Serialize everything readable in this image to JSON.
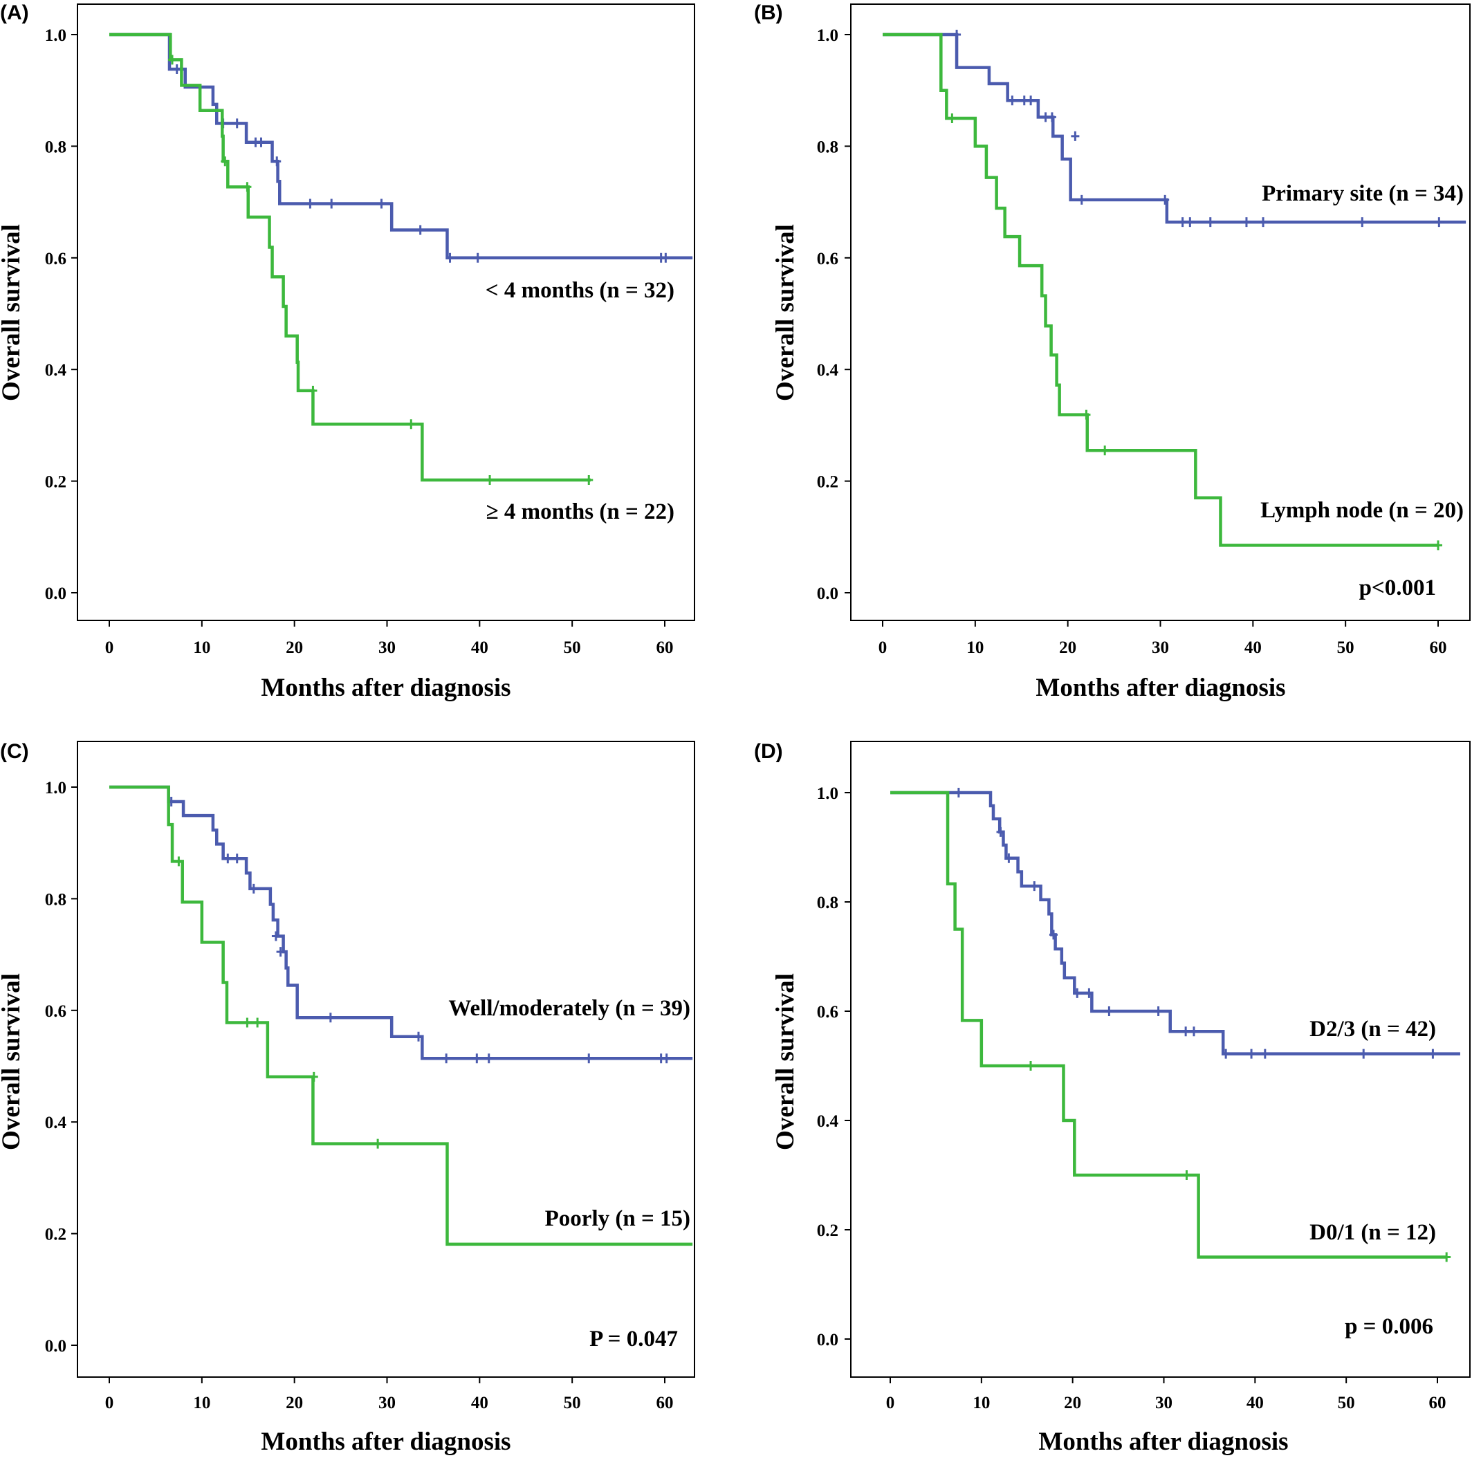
{
  "colors": {
    "blue": "#4B5BAE",
    "green": "#3DB83D"
  },
  "chart_data": [
    {
      "type": "line",
      "panel_label": "(A)",
      "xlabel": "Months after diagnosis",
      "ylabel": "Overall survival",
      "xlim": [
        0,
        63
      ],
      "ylim": [
        0,
        1
      ],
      "xticks": [
        "0",
        "10",
        "20",
        "30",
        "40",
        "50",
        "60"
      ],
      "yticks": [
        "0.0",
        "0.2",
        "0.4",
        "0.6",
        "0.8",
        "1.0"
      ],
      "grid": false,
      "p_value": "",
      "series": [
        {
          "name": "< 4 months (n = 32)",
          "color": "#4B5BAE",
          "steps": [
            [
              0,
              1.0
            ],
            [
              6.5,
              0.938
            ],
            [
              8.2,
              0.906
            ],
            [
              11.2,
              0.875
            ],
            [
              11.6,
              0.841
            ],
            [
              14.8,
              0.807
            ],
            [
              17.6,
              0.773
            ],
            [
              18.2,
              0.737
            ],
            [
              18.4,
              0.697
            ],
            [
              30.5,
              0.65
            ],
            [
              36.5,
              0.6
            ],
            [
              63,
              0.6
            ]
          ],
          "censored": [
            [
              7.3,
              0.938
            ],
            [
              12.3,
              0.841
            ],
            [
              13.8,
              0.841
            ],
            [
              15.8,
              0.807
            ],
            [
              16.4,
              0.807
            ],
            [
              18.1,
              0.773
            ],
            [
              21.7,
              0.697
            ],
            [
              24,
              0.697
            ],
            [
              29.4,
              0.697
            ],
            [
              33.6,
              0.65
            ],
            [
              36.8,
              0.6
            ],
            [
              39.8,
              0.6
            ],
            [
              59.6,
              0.6
            ],
            [
              60.1,
              0.6
            ]
          ]
        },
        {
          "name": "≥ 4 months (n = 22)",
          "color": "#3DB83D",
          "steps": [
            [
              0,
              1.0
            ],
            [
              6.6,
              0.955
            ],
            [
              7.8,
              0.909
            ],
            [
              9.8,
              0.864
            ],
            [
              12.2,
              0.818
            ],
            [
              12.3,
              0.773
            ],
            [
              12.8,
              0.727
            ],
            [
              15,
              0.673
            ],
            [
              17.3,
              0.619
            ],
            [
              17.6,
              0.566
            ],
            [
              18.8,
              0.513
            ],
            [
              19.1,
              0.46
            ],
            [
              20.3,
              0.413
            ],
            [
              20.4,
              0.362
            ],
            [
              22,
              0.302
            ],
            [
              33.8,
              0.202
            ],
            [
              52,
              0.202
            ]
          ],
          "censored": [
            [
              6.8,
              0.955
            ],
            [
              12.5,
              0.773
            ],
            [
              14.9,
              0.727
            ],
            [
              22,
              0.362
            ],
            [
              32.6,
              0.302
            ],
            [
              41.1,
              0.202
            ],
            [
              51.8,
              0.202
            ]
          ]
        }
      ],
      "annotations": [
        {
          "text": "< 4 months  (n = 32)"
        },
        {
          "text": "≥ 4 months  (n = 22)"
        }
      ]
    },
    {
      "type": "line",
      "panel_label": "(B)",
      "xlabel": "Months after diagnosis",
      "ylabel": "Overall survival",
      "xlim": [
        0,
        63
      ],
      "ylim": [
        0,
        1
      ],
      "xticks": [
        "0",
        "10",
        "20",
        "30",
        "40",
        "50",
        "60"
      ],
      "yticks": [
        "0.0",
        "0.2",
        "0.4",
        "0.6",
        "0.8",
        "1.0"
      ],
      "grid": false,
      "p_value": "p<0.001",
      "series": [
        {
          "name": "Primary site (n = 34)",
          "color": "#4B5BAE",
          "steps": [
            [
              0,
              1.0
            ],
            [
              8,
              0.941
            ],
            [
              11.5,
              0.912
            ],
            [
              13.5,
              0.882
            ],
            [
              16.8,
              0.852
            ],
            [
              18.4,
              0.818
            ],
            [
              19.4,
              0.777
            ],
            [
              20.3,
              0.704
            ],
            [
              30.7,
              0.664
            ],
            [
              63,
              0.664
            ]
          ],
          "censored": [
            [
              8,
              1.0
            ],
            [
              14,
              0.882
            ],
            [
              15.3,
              0.882
            ],
            [
              16,
              0.882
            ],
            [
              17.6,
              0.852
            ],
            [
              18.3,
              0.852
            ],
            [
              20.8,
              0.818
            ],
            [
              21.5,
              0.704
            ],
            [
              30.5,
              0.704
            ],
            [
              32.4,
              0.664
            ],
            [
              33.2,
              0.664
            ],
            [
              35.4,
              0.664
            ],
            [
              39.3,
              0.664
            ],
            [
              41.1,
              0.664
            ],
            [
              51.8,
              0.664
            ],
            [
              60.1,
              0.664
            ]
          ]
        },
        {
          "name": "Lymph node (n = 20)",
          "color": "#3DB83D",
          "steps": [
            [
              0,
              1.0
            ],
            [
              6.3,
              0.9
            ],
            [
              6.9,
              0.85
            ],
            [
              10,
              0.8
            ],
            [
              11.2,
              0.744
            ],
            [
              12.3,
              0.689
            ],
            [
              13.2,
              0.638
            ],
            [
              14.8,
              0.586
            ],
            [
              17.2,
              0.532
            ],
            [
              17.6,
              0.478
            ],
            [
              18.2,
              0.426
            ],
            [
              18.8,
              0.372
            ],
            [
              19.1,
              0.319
            ],
            [
              22.1,
              0.255
            ],
            [
              33.8,
              0.17
            ],
            [
              36.5,
              0.085
            ],
            [
              60,
              0.085
            ]
          ],
          "censored": [
            [
              7.5,
              0.85
            ],
            [
              22,
              0.319
            ],
            [
              24,
              0.255
            ],
            [
              60,
              0.085
            ]
          ]
        }
      ],
      "annotations": [
        {
          "text": "Primary  site  (n = 34)"
        },
        {
          "text": "Lymph  node  (n = 20)"
        }
      ]
    },
    {
      "type": "line",
      "panel_label": "(C)",
      "xlabel": "Months after diagnosis",
      "ylabel": "Overall survival",
      "xlim": [
        0,
        63
      ],
      "ylim": [
        0,
        1
      ],
      "xticks": [
        "0",
        "10",
        "20",
        "30",
        "40",
        "50",
        "60"
      ],
      "yticks": [
        "0.0",
        "0.2",
        "0.4",
        "0.6",
        "0.8",
        "1.0"
      ],
      "grid": false,
      "p_value": "P = 0.047",
      "series": [
        {
          "name": "Well/moderately (n = 39)",
          "color": "#4B5BAE",
          "steps": [
            [
              0,
              1.0
            ],
            [
              6.4,
              0.974
            ],
            [
              8,
              0.949
            ],
            [
              11.2,
              0.923
            ],
            [
              11.6,
              0.898
            ],
            [
              12.3,
              0.872
            ],
            [
              14.8,
              0.846
            ],
            [
              15.2,
              0.818
            ],
            [
              17.4,
              0.79
            ],
            [
              17.7,
              0.762
            ],
            [
              18.2,
              0.733
            ],
            [
              18.8,
              0.705
            ],
            [
              19.1,
              0.676
            ],
            [
              19.3,
              0.645
            ],
            [
              20.3,
              0.587
            ],
            [
              30.5,
              0.553
            ],
            [
              33.8,
              0.514
            ],
            [
              63,
              0.514
            ]
          ],
          "censored": [
            [
              6.7,
              0.974
            ],
            [
              12.8,
              0.872
            ],
            [
              13.8,
              0.872
            ],
            [
              15.6,
              0.818
            ],
            [
              18,
              0.733
            ],
            [
              18.5,
              0.705
            ],
            [
              23.9,
              0.587
            ],
            [
              33.4,
              0.553
            ],
            [
              36.4,
              0.514
            ],
            [
              39.7,
              0.514
            ],
            [
              41,
              0.514
            ],
            [
              51.8,
              0.514
            ],
            [
              59.6,
              0.514
            ],
            [
              60.2,
              0.514
            ]
          ]
        },
        {
          "name": "Poorly (n = 15)",
          "color": "#3DB83D",
          "steps": [
            [
              0,
              1.0
            ],
            [
              6.4,
              0.933
            ],
            [
              6.8,
              0.867
            ],
            [
              7.9,
              0.794
            ],
            [
              10,
              0.722
            ],
            [
              12.3,
              0.65
            ],
            [
              12.7,
              0.578
            ],
            [
              17.1,
              0.481
            ],
            [
              22,
              0.361
            ],
            [
              36.5,
              0.181
            ],
            [
              63,
              0.181
            ]
          ],
          "censored": [
            [
              7.5,
              0.867
            ],
            [
              14.9,
              0.578
            ],
            [
              16,
              0.578
            ],
            [
              22.1,
              0.481
            ],
            [
              29,
              0.361
            ]
          ]
        }
      ],
      "annotations": [
        {
          "text": "Well/moderately  (n = 39)"
        },
        {
          "text": "Poorly  (n = 15)"
        }
      ]
    },
    {
      "type": "line",
      "panel_label": "(D)",
      "xlabel": "Months after diagnosis",
      "ylabel": "Overall survival",
      "xlim": [
        -1,
        62.5
      ],
      "ylim": [
        -0.02,
        1.01
      ],
      "xticks": [
        "0",
        "10",
        "20",
        "30",
        "40",
        "50",
        "60"
      ],
      "yticks": [
        "0.0",
        "0.2",
        "0.4",
        "0.6",
        "0.8",
        "1.0"
      ],
      "grid": false,
      "p_value": "p = 0.006",
      "series": [
        {
          "name": "D2/3 (n = 42)",
          "color": "#4B5BAE",
          "steps": [
            [
              0,
              1.0
            ],
            [
              11,
              0.976
            ],
            [
              11.3,
              0.952
            ],
            [
              12,
              0.928
            ],
            [
              12.4,
              0.904
            ],
            [
              12.7,
              0.88
            ],
            [
              14,
              0.855
            ],
            [
              14.4,
              0.829
            ],
            [
              16.5,
              0.804
            ],
            [
              17.4,
              0.778
            ],
            [
              17.7,
              0.74
            ],
            [
              18.1,
              0.714
            ],
            [
              18.8,
              0.688
            ],
            [
              19.1,
              0.661
            ],
            [
              20.2,
              0.633
            ],
            [
              22.1,
              0.6
            ],
            [
              30.7,
              0.563
            ],
            [
              36.5,
              0.522
            ],
            [
              62.5,
              0.522
            ]
          ],
          "censored": [
            [
              7.5,
              1.0
            ],
            [
              12.1,
              0.928
            ],
            [
              13,
              0.88
            ],
            [
              15.8,
              0.829
            ],
            [
              17.9,
              0.74
            ],
            [
              20.5,
              0.633
            ],
            [
              21.8,
              0.633
            ],
            [
              24,
              0.6
            ],
            [
              29.4,
              0.6
            ],
            [
              32.4,
              0.563
            ],
            [
              33.3,
              0.563
            ],
            [
              36.8,
              0.522
            ],
            [
              39.6,
              0.522
            ],
            [
              41.1,
              0.522
            ],
            [
              51.9,
              0.522
            ],
            [
              59.5,
              0.522
            ]
          ]
        },
        {
          "name": "D0/1 (n = 12)",
          "color": "#3DB83D",
          "steps": [
            [
              0,
              1.0
            ],
            [
              6.3,
              0.833
            ],
            [
              7.1,
              0.75
            ],
            [
              7.9,
              0.583
            ],
            [
              10,
              0.5
            ],
            [
              19,
              0.4
            ],
            [
              20.2,
              0.3
            ],
            [
              33.8,
              0.15
            ],
            [
              61,
              0.15
            ]
          ],
          "censored": [
            [
              15.4,
              0.5
            ],
            [
              32.5,
              0.3
            ],
            [
              61,
              0.15
            ]
          ]
        }
      ],
      "annotations": [
        {
          "text": "D2/3  (n = 42)"
        },
        {
          "text": "D0/1  (n = 12)"
        }
      ]
    }
  ]
}
